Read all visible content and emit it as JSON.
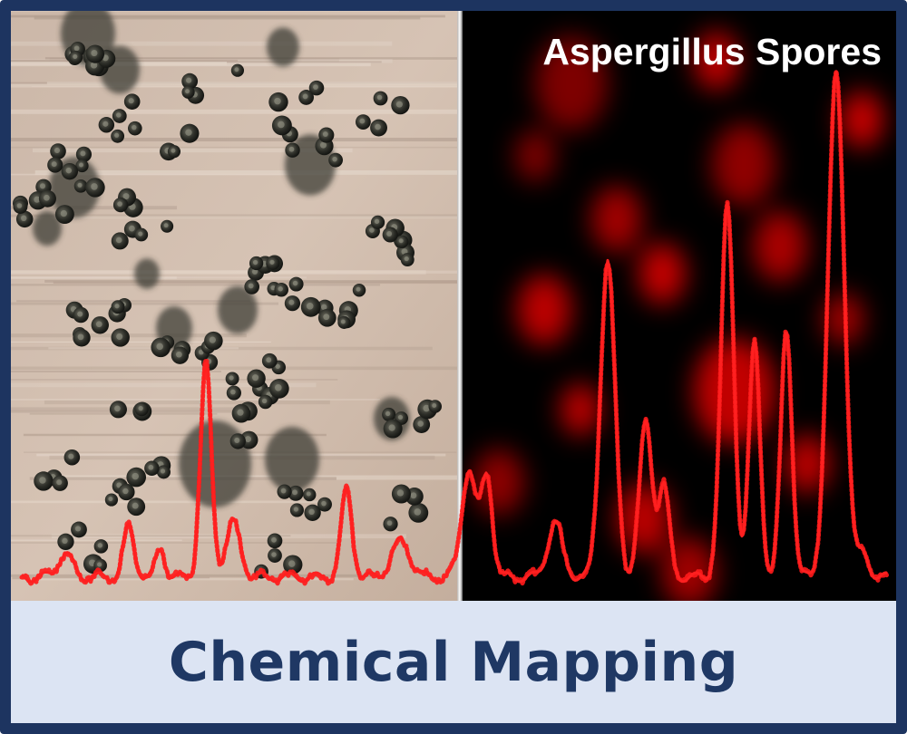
{
  "image_title": "Aspergillus Spores",
  "caption": "Chemical Mapping",
  "panels": {
    "left": "optical-micrograph",
    "right": "chemical-map"
  },
  "colors": {
    "frame": "#1d3460",
    "caption_background": "#dce4f3",
    "caption_text": "#1f3864",
    "spectrum": "#ff1a1a",
    "map_hotspot": "#ff0000",
    "map_background": "#000000"
  },
  "icons": [
    "spore-cluster",
    "spectrum-trace"
  ]
}
